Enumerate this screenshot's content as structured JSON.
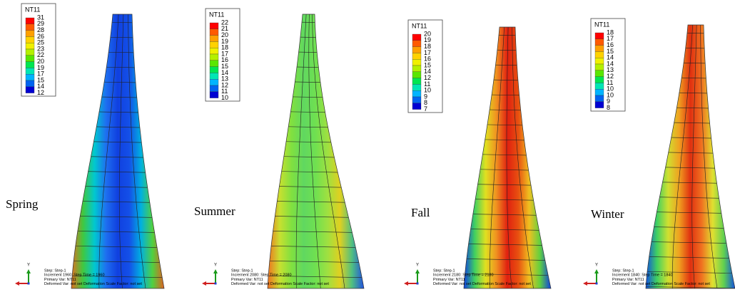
{
  "panels": [
    {
      "label": "Spring",
      "legend": {
        "title": "NT11",
        "values": [
          31,
          29,
          28,
          26,
          25,
          23,
          22,
          20,
          19,
          17,
          15,
          14,
          12
        ]
      },
      "axis_label": "Y",
      "info": [
        "Step: Step-1",
        "Increment    1960: Step Time =    1960",
        "Primary Var: NT11",
        "Deformed Var:  not set   Deformation Scale Factor:  not set"
      ]
    },
    {
      "label": "Summer",
      "legend": {
        "title": "NT11",
        "values": [
          22,
          21,
          20,
          19,
          18,
          17,
          16,
          15,
          14,
          13,
          12,
          11,
          10
        ]
      },
      "axis_label": "Y",
      "info": [
        "Step: Step-1",
        "Increment    2080: Step Time =    2080",
        "Primary Var: NT11",
        "Deformed Var:  not set   Deformation Scale Factor:  not set"
      ]
    },
    {
      "label": "Fall",
      "legend": {
        "title": "NT11",
        "values": [
          20,
          19,
          18,
          17,
          16,
          15,
          14,
          12,
          11,
          10,
          9,
          8,
          7
        ]
      },
      "axis_label": "Y",
      "info": [
        "Step: Step-1",
        "Increment    2180: Step Time =    2180",
        "Primary Var: NT11",
        "Deformed Var:  not set   Deformation Scale Factor:  not set"
      ]
    },
    {
      "label": "Winter",
      "legend": {
        "title": "NT11",
        "values": [
          18,
          17,
          16,
          15,
          14,
          14,
          13,
          12,
          11,
          10,
          10,
          9,
          8
        ]
      },
      "axis_label": "Y",
      "info": [
        "Step: Step-1",
        "Increment    1840: Step Time =    1840",
        "Primary Var: NT11",
        "Deformed Var:  not set   Deformation Scale Factor:  not set"
      ]
    }
  ]
}
